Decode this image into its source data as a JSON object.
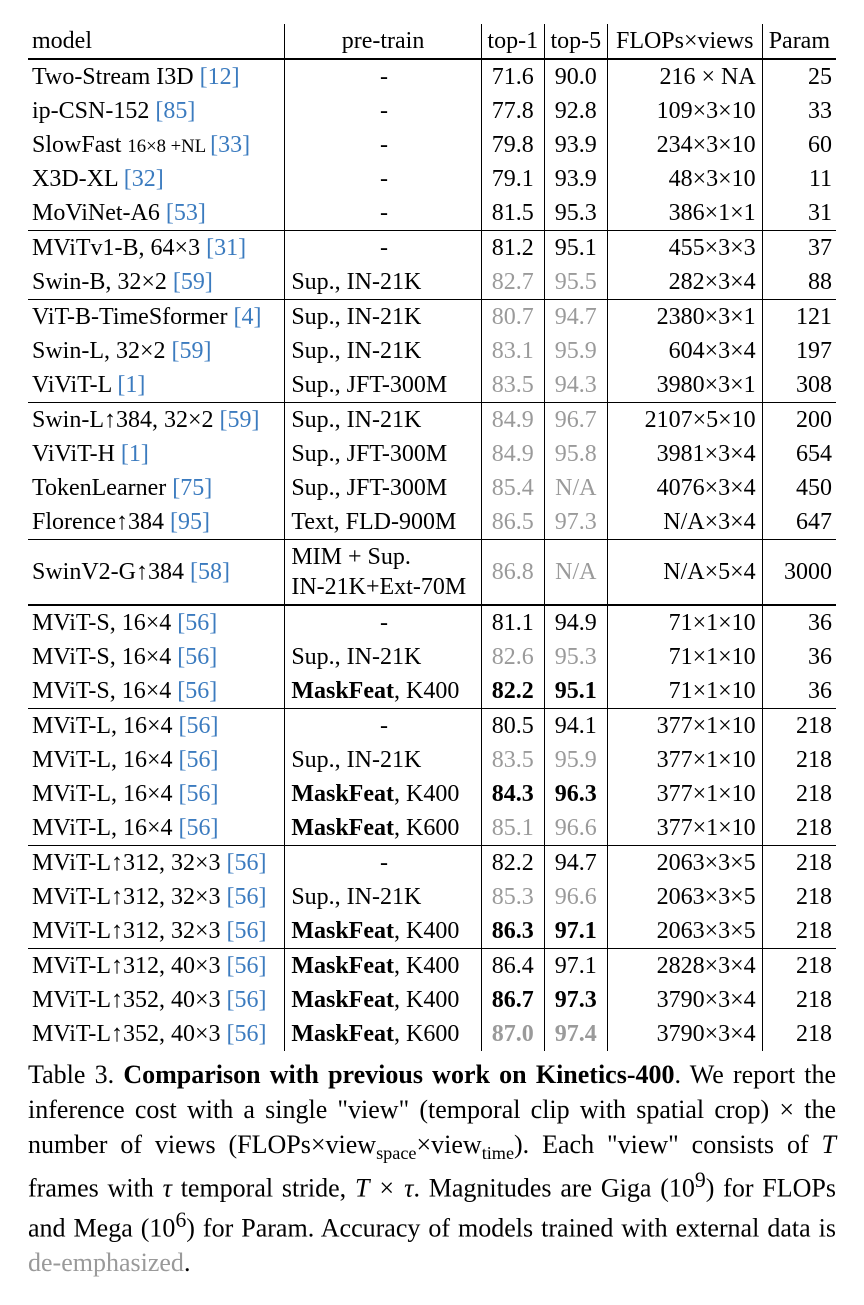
{
  "colors": {
    "cite": "#3b7bbf",
    "gray": "#9a9a9a",
    "text": "#000000",
    "bg": "#ffffff"
  },
  "table": {
    "headers": {
      "model": "model",
      "pretrain": "pre-train",
      "top1": "top-1",
      "top5": "top-5",
      "flops": "FLOPs×views",
      "param": "Param"
    },
    "groups": [
      {
        "sep": "none",
        "rows": [
          {
            "model_main": "Two-Stream I3D ",
            "cite": "[12]",
            "model_post": "",
            "pretrain": "-",
            "pretrain_center": true,
            "t1": "71.6",
            "t5": "90.0",
            "flops": "216 × NA",
            "param": "25"
          },
          {
            "model_main": "ip-CSN-152 ",
            "cite": "[85]",
            "model_post": "",
            "pretrain": "-",
            "pretrain_center": true,
            "t1": "77.8",
            "t5": "92.8",
            "flops": "109×3×10",
            "param": "33"
          },
          {
            "model_main": "SlowFast ",
            "model_small": "16×8 +NL ",
            "cite": "[33]",
            "model_post": "",
            "pretrain": "-",
            "pretrain_center": true,
            "t1": "79.8",
            "t5": "93.9",
            "flops": "234×3×10",
            "param": "60"
          },
          {
            "model_main": "X3D-XL ",
            "cite": "[32]",
            "model_post": "",
            "pretrain": "-",
            "pretrain_center": true,
            "t1": "79.1",
            "t5": "93.9",
            "flops": "48×3×10",
            "param": "11"
          },
          {
            "model_main": "MoViNet-A6 ",
            "cite": "[53]",
            "model_post": "",
            "pretrain": "-",
            "pretrain_center": true,
            "t1": "81.5",
            "t5": "95.3",
            "flops": "386×1×1",
            "param": "31"
          }
        ]
      },
      {
        "sep": "thin",
        "rows": [
          {
            "model_main": "MViTv1-B, 64×3 ",
            "cite": "[31]",
            "pretrain": "-",
            "pretrain_center": true,
            "t1": "81.2",
            "t5": "95.1",
            "flops": "455×3×3",
            "param": "37"
          },
          {
            "model_main": "Swin-B, 32×2 ",
            "cite": "[59]",
            "pretrain": "Sup., IN-21K",
            "t1": "82.7",
            "t5": "95.5",
            "t_gray": true,
            "flops": "282×3×4",
            "param": "88"
          }
        ]
      },
      {
        "sep": "thin",
        "rows": [
          {
            "model_main": "ViT-B-TimeSformer ",
            "cite": "[4]",
            "pretrain": "Sup., IN-21K",
            "t1": "80.7",
            "t5": "94.7",
            "t_gray": true,
            "flops": "2380×3×1",
            "param": "121"
          },
          {
            "model_main": "Swin-L, 32×2 ",
            "cite": "[59]",
            "pretrain": "Sup., IN-21K",
            "t1": "83.1",
            "t5": "95.9",
            "t_gray": true,
            "flops": "604×3×4",
            "param": "197"
          },
          {
            "model_main": "ViViT-L ",
            "cite": "[1]",
            "pretrain": "Sup., JFT-300M",
            "t1": "83.5",
            "t5": "94.3",
            "t_gray": true,
            "flops": "3980×3×1",
            "param": "308"
          }
        ]
      },
      {
        "sep": "thin",
        "rows": [
          {
            "model_main": "Swin-L↑384, 32×2 ",
            "cite": "[59]",
            "pretrain": "Sup., IN-21K",
            "t1": "84.9",
            "t5": "96.7",
            "t_gray": true,
            "flops": "2107×5×10",
            "param": "200"
          },
          {
            "model_main": "ViViT-H ",
            "cite": "[1]",
            "pretrain": "Sup., JFT-300M",
            "t1": "84.9",
            "t5": "95.8",
            "t_gray": true,
            "flops": "3981×3×4",
            "param": "654"
          },
          {
            "model_main": "TokenLearner ",
            "cite": "[75]",
            "pretrain": "Sup., JFT-300M",
            "t1": "85.4",
            "t5": "N/A",
            "t_gray": true,
            "flops": "4076×3×4",
            "param": "450"
          },
          {
            "model_main": "Florence↑384 ",
            "cite": "[95]",
            "pretrain": "Text, FLD-900M",
            "t1": "86.5",
            "t5": "97.3",
            "t_gray": true,
            "flops": "N/A×3×4",
            "param": "647"
          }
        ]
      },
      {
        "sep": "thin",
        "rows": [
          {
            "model_main": "SwinV2-G↑384 ",
            "cite": "[58]",
            "pretrain_two": [
              "MIM + Sup.",
              "IN-21K+Ext-70M"
            ],
            "t1": "86.8",
            "t5": "N/A",
            "t_gray": true,
            "flops": "N/A×5×4",
            "param": "3000"
          }
        ]
      },
      {
        "sep": "thick",
        "rows": [
          {
            "model_main": "MViT-S, 16×4 ",
            "cite": "[56]",
            "pretrain": "-",
            "pretrain_center": true,
            "t1": "81.1",
            "t5": "94.9",
            "flops": "71×1×10",
            "param": "36"
          },
          {
            "model_main": "MViT-S, 16×4 ",
            "cite": "[56]",
            "pretrain": "Sup., IN-21K",
            "t1": "82.6",
            "t5": "95.3",
            "t_gray": true,
            "flops": "71×1×10",
            "param": "36"
          },
          {
            "model_main": "MViT-S, 16×4 ",
            "cite": "[56]",
            "pretrain_bold": "MaskFeat",
            "pretrain_rest": ", K400",
            "t1": "82.2",
            "t5": "95.1",
            "t_bold": true,
            "flops": "71×1×10",
            "param": "36"
          }
        ]
      },
      {
        "sep": "thin",
        "rows": [
          {
            "model_main": "MViT-L, 16×4 ",
            "cite": "[56]",
            "pretrain": "-",
            "pretrain_center": true,
            "t1": "80.5",
            "t5": "94.1",
            "flops": "377×1×10",
            "param": "218"
          },
          {
            "model_main": "MViT-L, 16×4 ",
            "cite": "[56]",
            "pretrain": "Sup., IN-21K",
            "t1": "83.5",
            "t5": "95.9",
            "t_gray": true,
            "flops": "377×1×10",
            "param": "218"
          },
          {
            "model_main": "MViT-L, 16×4 ",
            "cite": "[56]",
            "pretrain_bold": "MaskFeat",
            "pretrain_rest": ", K400",
            "t1": "84.3",
            "t5": "96.3",
            "t_bold": true,
            "flops": "377×1×10",
            "param": "218"
          },
          {
            "model_main": "MViT-L, 16×4 ",
            "cite": "[56]",
            "pretrain_bold": "MaskFeat",
            "pretrain_rest": ", K600",
            "t1": "85.1",
            "t5": "96.6",
            "t_gray": true,
            "flops": "377×1×10",
            "param": "218"
          }
        ]
      },
      {
        "sep": "thin",
        "rows": [
          {
            "model_main": "MViT-L↑312, 32×3 ",
            "cite": "[56]",
            "pretrain": "-",
            "pretrain_center": true,
            "t1": "82.2",
            "t5": "94.7",
            "flops": "2063×3×5",
            "param": "218"
          },
          {
            "model_main": "MViT-L↑312, 32×3 ",
            "cite": "[56]",
            "pretrain": "Sup., IN-21K",
            "t1": "85.3",
            "t5": "96.6",
            "t_gray": true,
            "flops": "2063×3×5",
            "param": "218"
          },
          {
            "model_main": "MViT-L↑312, 32×3 ",
            "cite": "[56]",
            "pretrain_bold": "MaskFeat",
            "pretrain_rest": ", K400",
            "t1": "86.3",
            "t5": "97.1",
            "t_bold": true,
            "flops": "2063×3×5",
            "param": "218"
          }
        ]
      },
      {
        "sep": "thin",
        "rows": [
          {
            "model_main": "MViT-L↑312, 40×3 ",
            "cite": "[56]",
            "pretrain_bold": "MaskFeat",
            "pretrain_rest": ", K400",
            "t1": "86.4",
            "t5": "97.1",
            "flops": "2828×3×4",
            "param": "218"
          },
          {
            "model_main": "MViT-L↑352, 40×3 ",
            "cite": "[56]",
            "pretrain_bold": "MaskFeat",
            "pretrain_rest": ", K400",
            "t1": "86.7",
            "t5": "97.3",
            "t_bold": true,
            "flops": "3790×3×4",
            "param": "218"
          },
          {
            "model_main": "MViT-L↑352, 40×3 ",
            "cite": "[56]",
            "pretrain_bold": "MaskFeat",
            "pretrain_rest": ", K600",
            "t1": "87.0",
            "t5": "97.4",
            "t_bold": true,
            "t_gray": true,
            "flops": "3790×3×4",
            "param": "218"
          }
        ]
      }
    ]
  },
  "caption": {
    "label": "Table 3.",
    "title": "Comparison with previous work on Kinetics-400",
    "body1": ". We report the inference cost with a single \"view\" (temporal clip with spatial crop) × the number of views (FLOPs×view",
    "sub1": "space",
    "body2": "×view",
    "sub2": "time",
    "body3": "). Each \"view\" consists of ",
    "T": "T",
    "body4": " frames with ",
    "tau": "τ",
    "body5": " temporal stride, ",
    "Ttau": "T × τ",
    "body6": ". Magnitudes are Giga (10",
    "sup9": "9",
    "body7": ") for FLOPs and Mega (10",
    "sup6": "6",
    "body8": ") for Param. Accuracy of models trained with external data is ",
    "deemph": "de-emphasized",
    "body9": "."
  }
}
